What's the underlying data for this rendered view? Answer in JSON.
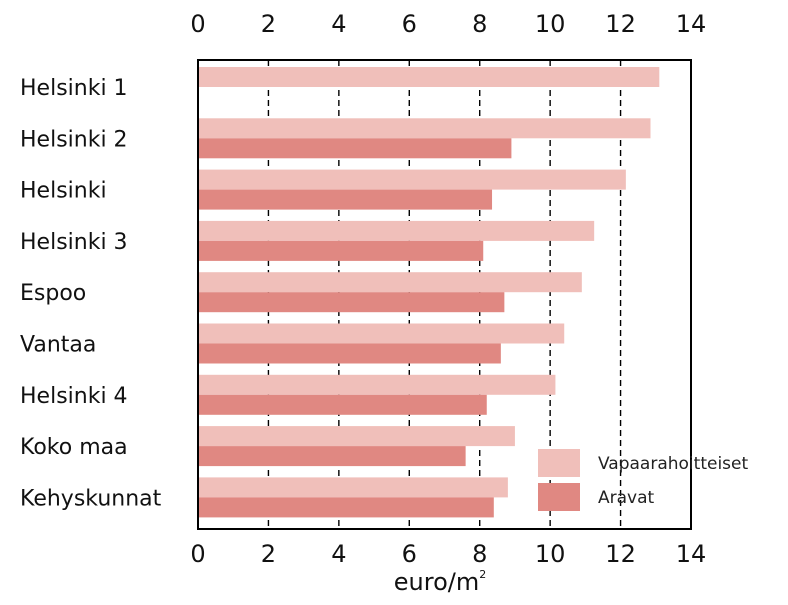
{
  "chart_data": {
    "type": "bar",
    "orientation": "horizontal",
    "categories": [
      "Helsinki 1",
      "Helsinki 2",
      "Helsinki",
      "Helsinki 3",
      "Espoo",
      "Vantaa",
      "Helsinki 4",
      "Koko maa",
      "Kehyskunnat"
    ],
    "series": [
      {
        "name": "Vapaarahoitteiset",
        "color": "#f0bfba",
        "values": [
          13.1,
          12.85,
          12.15,
          11.25,
          10.9,
          10.4,
          10.15,
          9.0,
          8.8
        ]
      },
      {
        "name": "Aravat",
        "color": "#e08882",
        "values": [
          null,
          8.9,
          8.35,
          8.1,
          8.7,
          8.6,
          8.2,
          7.6,
          8.4
        ]
      }
    ],
    "xlabel": "euro/m",
    "xlabel_superscript": "2",
    "xlim": [
      0,
      14
    ],
    "xticks": [
      "0",
      "2",
      "4",
      "6",
      "8",
      "10",
      "12",
      "14"
    ],
    "grid": "vertical-dashed",
    "legend_position": "bottom-right"
  }
}
